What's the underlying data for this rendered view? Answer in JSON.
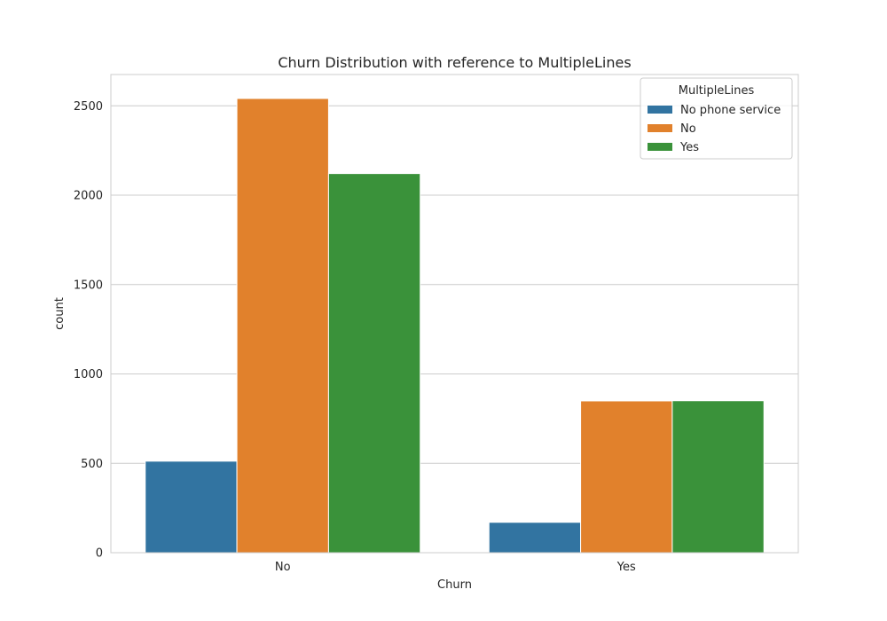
{
  "chart_data": {
    "type": "bar",
    "title": "Churn Distribution with reference to MultipleLines",
    "xlabel": "Churn",
    "ylabel": "count",
    "categories": [
      "No",
      "Yes"
    ],
    "series": [
      {
        "name": "No phone service",
        "values": [
          512,
          170
        ],
        "color": "#3274a1"
      },
      {
        "name": "No",
        "values": [
          2541,
          849
        ],
        "color": "#e1812c"
      },
      {
        "name": "Yes",
        "values": [
          2121,
          850
        ],
        "color": "#3a923a"
      }
    ],
    "ylim": [
      0,
      2675
    ],
    "yticks": [
      0,
      500,
      1000,
      1500,
      2000,
      2500
    ],
    "legend": {
      "title": "MultipleLines",
      "placement": "top-right"
    },
    "grid": true
  }
}
